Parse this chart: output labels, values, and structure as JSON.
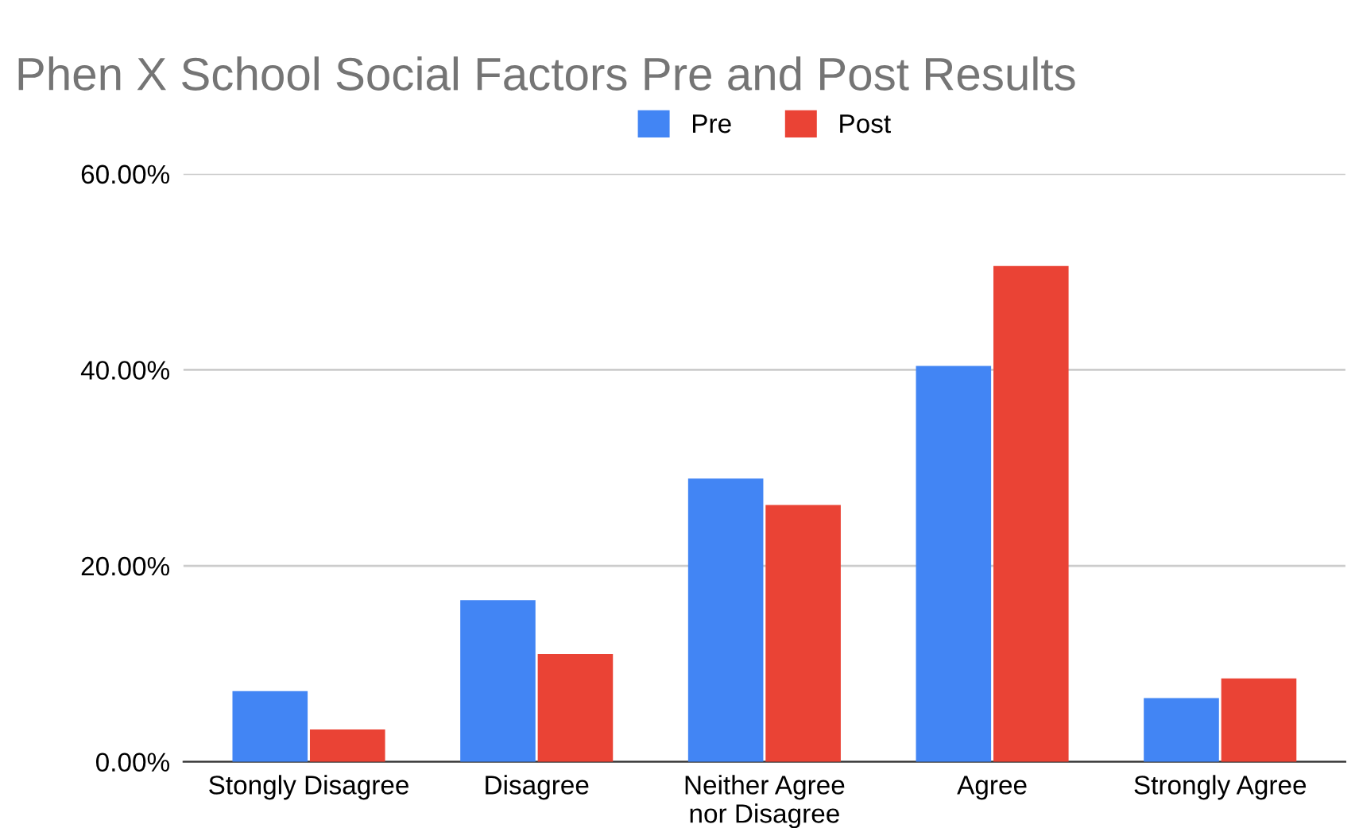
{
  "chart_data": {
    "type": "bar",
    "title": "Phen X School Social Factors Pre and Post Results",
    "categories": [
      "Stongly Disagree",
      "Disagree",
      "Neither Agree\nnor Disagree",
      "Agree",
      "Strongly Agree"
    ],
    "series": [
      {
        "name": "Pre",
        "color": "#4285f4",
        "values": [
          7.2,
          16.5,
          28.9,
          40.4,
          6.5
        ]
      },
      {
        "name": "Post",
        "color": "#ea4335",
        "values": [
          3.3,
          11.0,
          26.2,
          50.6,
          8.5
        ]
      }
    ],
    "ylim": [
      0,
      60
    ],
    "yticks": [
      {
        "value": 0,
        "label": "0.00%"
      },
      {
        "value": 20,
        "label": "20.00%"
      },
      {
        "value": 40,
        "label": "40.00%"
      },
      {
        "value": 60,
        "label": "60.00%"
      }
    ],
    "grid": "y",
    "legend": "top"
  }
}
